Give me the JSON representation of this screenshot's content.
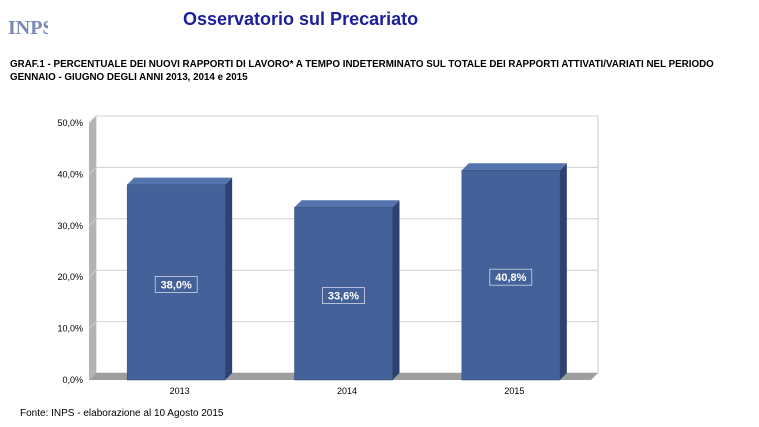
{
  "header": {
    "logo_text": "INPS",
    "title": "Osservatorio sul Precariato"
  },
  "chart_data": {
    "type": "bar",
    "title": "GRAF.1 - PERCENTUALE DEI NUOVI RAPPORTI DI LAVORO* A TEMPO INDETERMINATO SUL TOTALE DEI RAPPORTI ATTIVATI/VARIATI NEL PERIODO GENNAIO - GIUGNO  DEGLI ANNI 2013, 2014 e 2015",
    "categories": [
      "2013",
      "2014",
      "2015"
    ],
    "values": [
      38.0,
      33.6,
      40.8
    ],
    "data_labels": [
      "38,0%",
      "33,6%",
      "40,8%"
    ],
    "y_ticks": [
      "0,0%",
      "10,0%",
      "20,0%",
      "30,0%",
      "40,0%",
      "50,0%"
    ],
    "ylim": [
      0,
      50
    ],
    "xlabel": "",
    "ylabel": "",
    "grid": true,
    "bar_color": "#44619a",
    "bar_side_color": "#2c4372",
    "bar_top_color": "#5574ad"
  },
  "footer": {
    "source": "Fonte: INPS - elaborazione al 10 Agosto 2015"
  }
}
